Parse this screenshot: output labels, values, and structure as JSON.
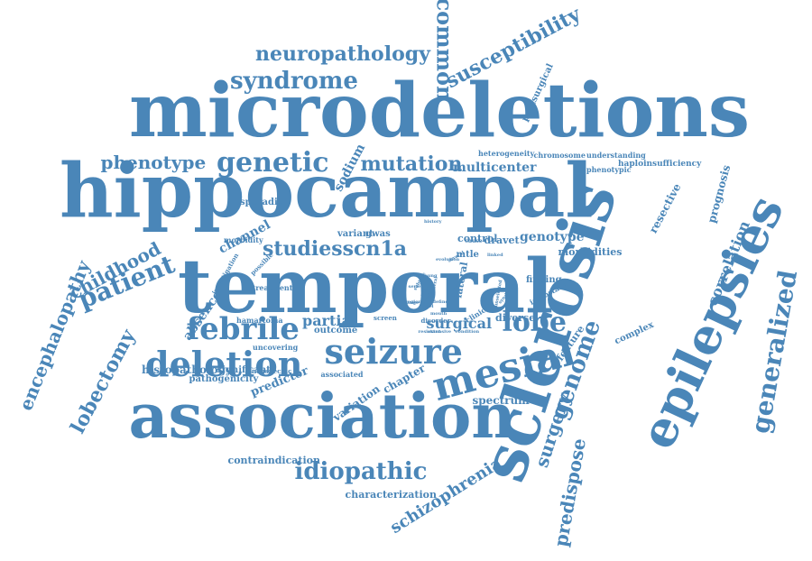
{
  "colors": {
    "word": "#4a86b8",
    "background": "#ffffff"
  },
  "words": [
    {
      "text": "microdeletions",
      "size": 82,
      "rotate": 0
    },
    {
      "text": "hippocampal",
      "size": 82,
      "rotate": 0
    },
    {
      "text": "temporal",
      "size": 82,
      "rotate": 0
    },
    {
      "text": "association",
      "size": 68,
      "rotate": 0
    },
    {
      "text": "sclerosis",
      "size": 70,
      "rotate": -72
    },
    {
      "text": "epilepsies",
      "size": 54,
      "rotate": -65
    },
    {
      "text": "seizure",
      "size": 38,
      "rotate": 0
    },
    {
      "text": "mesial",
      "size": 44,
      "rotate": -15
    },
    {
      "text": "deletion",
      "size": 38,
      "rotate": 0
    },
    {
      "text": "febrile",
      "size": 34,
      "rotate": 0
    },
    {
      "text": "genetic",
      "size": 30,
      "rotate": 0
    },
    {
      "text": "syndrome",
      "size": 26,
      "rotate": 0
    },
    {
      "text": "neuropathology",
      "size": 22,
      "rotate": 0
    },
    {
      "text": "common",
      "size": 24,
      "rotate": 90
    },
    {
      "text": "susceptibility",
      "size": 22,
      "rotate": -28
    },
    {
      "text": "phenotype",
      "size": 20,
      "rotate": 0
    },
    {
      "text": "mutation",
      "size": 22,
      "rotate": 0
    },
    {
      "text": "patient",
      "size": 28,
      "rotate": -22
    },
    {
      "text": "childhood",
      "size": 20,
      "rotate": -28
    },
    {
      "text": "encephalopathy",
      "size": 20,
      "rotate": -68
    },
    {
      "text": "lobectomy",
      "size": 22,
      "rotate": -62
    },
    {
      "text": "idiopathic",
      "size": 26,
      "rotate": 0
    },
    {
      "text": "generalized",
      "size": 28,
      "rotate": -80
    },
    {
      "text": "lobe",
      "size": 30,
      "rotate": 0
    },
    {
      "text": "genome",
      "size": 26,
      "rotate": -70
    },
    {
      "text": "surgery",
      "size": 20,
      "rotate": -72
    },
    {
      "text": "predispose",
      "size": 20,
      "rotate": -80
    },
    {
      "text": "schizophrenia",
      "size": 18,
      "rotate": -32
    },
    {
      "text": "studiesscn1a",
      "size": 22,
      "rotate": 0
    },
    {
      "text": "correlation",
      "size": 16,
      "rotate": -68
    },
    {
      "text": "prognosis",
      "size": 12,
      "rotate": -75
    },
    {
      "text": "resective",
      "size": 12,
      "rotate": -62
    },
    {
      "text": "sodium",
      "size": 14,
      "rotate": -62
    },
    {
      "text": "channel",
      "size": 14,
      "rotate": -28
    },
    {
      "text": "absence",
      "size": 14,
      "rotate": -55
    },
    {
      "text": "partial",
      "size": 16,
      "rotate": 0
    },
    {
      "text": "surgical",
      "size": 16,
      "rotate": 0
    },
    {
      "text": "genotype",
      "size": 14,
      "rotate": 0
    },
    {
      "text": "multicenter",
      "size": 14,
      "rotate": 0
    },
    {
      "text": "predictor",
      "size": 13,
      "rotate": -22
    },
    {
      "text": "variation",
      "size": 12,
      "rotate": -35
    },
    {
      "text": "chapter",
      "size": 12,
      "rotate": -30
    },
    {
      "text": "spectrum",
      "size": 12,
      "rotate": 0
    },
    {
      "text": "postsurgical",
      "size": 10,
      "rotate": -65
    },
    {
      "text": "heterogeneity",
      "size": 8,
      "rotate": 0
    },
    {
      "text": "chromosome",
      "size": 8,
      "rotate": 0
    },
    {
      "text": "understanding",
      "size": 8,
      "rotate": 0
    },
    {
      "text": "phenotypic",
      "size": 8,
      "rotate": 0
    },
    {
      "text": "haploinsufficiency",
      "size": 9,
      "rotate": 0
    },
    {
      "text": "sporadic",
      "size": 10,
      "rotate": 0
    },
    {
      "text": "variant",
      "size": 10,
      "rotate": 0
    },
    {
      "text": "gwas",
      "size": 10,
      "rotate": 0
    },
    {
      "text": "control",
      "size": 11,
      "rotate": 0
    },
    {
      "text": "dravet",
      "size": 11,
      "rotate": 0
    },
    {
      "text": "morbidities",
      "size": 11,
      "rotate": 0
    },
    {
      "text": "morbidity",
      "size": 8,
      "rotate": 0
    },
    {
      "text": "mtle",
      "size": 10,
      "rotate": 0
    },
    {
      "text": "finding",
      "size": 10,
      "rotate": 0
    },
    {
      "text": "important",
      "size": 8,
      "rotate": -28
    },
    {
      "text": "investigation",
      "size": 7,
      "rotate": -60
    },
    {
      "text": "possible",
      "size": 7,
      "rotate": -45
    },
    {
      "text": "treatment",
      "size": 8,
      "rotate": 0
    },
    {
      "text": "hamartoma",
      "size": 8,
      "rotate": 0
    },
    {
      "text": "lateral",
      "size": 11,
      "rotate": -80
    },
    {
      "text": "outcome",
      "size": 10,
      "rotate": 0
    },
    {
      "text": "screen",
      "size": 7,
      "rotate": 0
    },
    {
      "text": "disorder",
      "size": 7,
      "rotate": 0
    },
    {
      "text": "clinical",
      "size": 8,
      "rotate": -32
    },
    {
      "text": "diverse",
      "size": 11,
      "rotate": 0
    },
    {
      "text": "feature",
      "size": 11,
      "rotate": -55
    },
    {
      "text": "complex",
      "size": 10,
      "rotate": -25
    },
    {
      "text": "uncovering",
      "size": 8,
      "rotate": 0
    },
    {
      "text": "nonspecific",
      "size": 7,
      "rotate": 0
    },
    {
      "text": "associated",
      "size": 8,
      "rotate": 0
    },
    {
      "text": "histopathology",
      "size": 12,
      "rotate": 0
    },
    {
      "text": "significant",
      "size": 10,
      "rotate": 0
    },
    {
      "text": "pathogenicity",
      "size": 10,
      "rotate": 0
    },
    {
      "text": "contraindication",
      "size": 11,
      "rotate": 0
    },
    {
      "text": "characterization",
      "size": 11,
      "rotate": 0
    },
    {
      "text": "evolution",
      "size": 5,
      "rotate": 0
    },
    {
      "text": "several",
      "size": 5,
      "rotate": -30
    },
    {
      "text": "resistant",
      "size": 5,
      "rotate": 0
    },
    {
      "text": "cause",
      "size": 6,
      "rotate": 0
    },
    {
      "text": "linked",
      "size": 5,
      "rotate": 0
    },
    {
      "text": "unilateral",
      "size": 5,
      "rotate": -80
    },
    {
      "text": "ictal",
      "size": 5,
      "rotate": -80
    },
    {
      "text": "series",
      "size": 5,
      "rotate": 0
    },
    {
      "text": "region",
      "size": 5,
      "rotate": 0
    },
    {
      "text": "condition",
      "size": 5,
      "rotate": 0
    },
    {
      "text": "extensive",
      "size": 5,
      "rotate": 0
    },
    {
      "text": "history",
      "size": 5,
      "rotate": 0
    },
    {
      "text": "syndromic",
      "size": 5,
      "rotate": -50
    },
    {
      "text": "subtype",
      "size": 5,
      "rotate": -60
    },
    {
      "text": "rare",
      "size": 5,
      "rotate": -60
    },
    {
      "text": "study",
      "size": 5,
      "rotate": -60
    },
    {
      "text": "young",
      "size": 5,
      "rotate": 0
    },
    {
      "text": "level",
      "size": 5,
      "rotate": 0
    },
    {
      "text": "range",
      "size": 5,
      "rotate": 0
    },
    {
      "text": "defined",
      "size": 5,
      "rotate": 0
    },
    {
      "text": "mouth",
      "size": 5,
      "rotate": 0
    },
    {
      "text": "unselected",
      "size": 5,
      "rotate": -80
    }
  ]
}
